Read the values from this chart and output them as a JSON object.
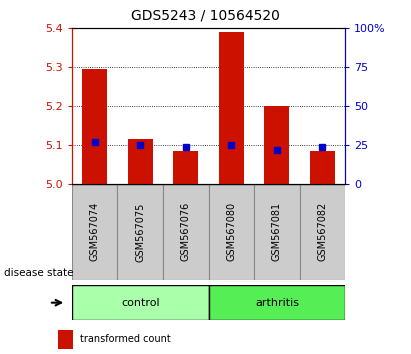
{
  "title": "GDS5243 / 10564520",
  "samples": [
    "GSM567074",
    "GSM567075",
    "GSM567076",
    "GSM567080",
    "GSM567081",
    "GSM567082"
  ],
  "groups": [
    "control",
    "control",
    "control",
    "arthritis",
    "arthritis",
    "arthritis"
  ],
  "transformed_count": [
    5.295,
    5.115,
    5.085,
    5.39,
    5.2,
    5.085
  ],
  "percentile_rank": [
    27,
    25,
    24,
    25,
    22,
    24
  ],
  "ylim": [
    5.0,
    5.4
  ],
  "y_ticks_left": [
    5.0,
    5.1,
    5.2,
    5.3,
    5.4
  ],
  "y_ticks_right": [
    0,
    25,
    50,
    75,
    100
  ],
  "bar_color": "#cc1100",
  "percentile_color": "#0000cc",
  "control_color": "#aaffaa",
  "arthritis_color": "#55ee55",
  "axis_left_color": "#cc1100",
  "axis_right_color": "#0000cc",
  "bar_bottom": 5.0,
  "bar_width": 0.55,
  "percentile_marker_size": 5,
  "xlabel_box_color": "#cccccc",
  "xlabel_box_edge": "#888888"
}
